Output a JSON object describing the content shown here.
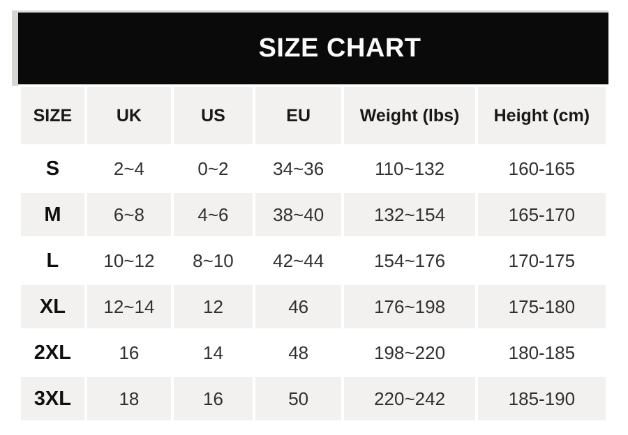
{
  "title": "SIZE CHART",
  "colors": {
    "title_bar_bg": "#0a0a0a",
    "title_text": "#fbfbfb",
    "row_gray": "#f2f1ef",
    "row_white": "#ffffff",
    "header_text": "#181818",
    "value_text": "#303030",
    "edge_artifact": "#d7d5d2"
  },
  "chart_data": {
    "type": "table",
    "title": "SIZE CHART",
    "columns": [
      "SIZE",
      "UK",
      "US",
      "EU",
      "Weight (lbs)",
      "Height (cm)"
    ],
    "rows": [
      [
        "S",
        "2~4",
        "0~2",
        "34~36",
        "110~132",
        "160-165"
      ],
      [
        "M",
        "6~8",
        "4~6",
        "38~40",
        "132~154",
        "165-170"
      ],
      [
        "L",
        "10~12",
        "8~10",
        "42~44",
        "154~176",
        "170-175"
      ],
      [
        "XL",
        "12~14",
        "12",
        "46",
        "176~198",
        "175-180"
      ],
      [
        "2XL",
        "16",
        "14",
        "48",
        "198~220",
        "180-185"
      ],
      [
        "3XL",
        "18",
        "16",
        "50",
        "220~242",
        "185-190"
      ]
    ],
    "layout_hints": {
      "row_striping": [
        "white",
        "gray",
        "white",
        "gray",
        "white",
        "gray"
      ],
      "header_row_background": "gray",
      "range_separator_weight": "~",
      "range_separator_height": "-"
    }
  }
}
